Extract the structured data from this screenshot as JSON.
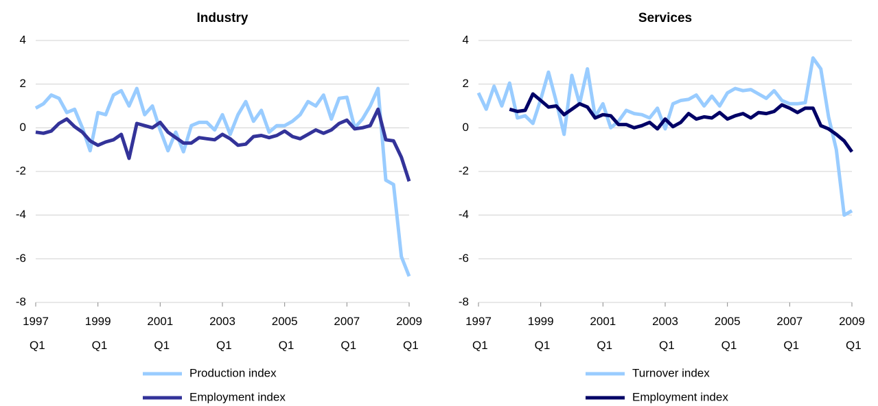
{
  "chart_data": [
    {
      "type": "line",
      "title": "Industry",
      "categories": [
        "1997 Q1",
        null,
        null,
        null,
        null,
        null,
        null,
        null,
        "1999 Q1",
        null,
        null,
        null,
        null,
        null,
        null,
        null,
        "2001 Q1",
        null,
        null,
        null,
        null,
        null,
        null,
        null,
        "2003 Q1",
        null,
        null,
        null,
        null,
        null,
        null,
        null,
        "2005 Q1",
        null,
        null,
        null,
        null,
        null,
        null,
        null,
        "2007 Q1",
        null,
        null,
        null,
        null,
        null,
        null,
        null,
        "2009 Q1"
      ],
      "series": [
        {
          "name": "Production index",
          "color": "#99ccff",
          "values": [
            0.9,
            1.1,
            1.5,
            1.35,
            0.7,
            0.85,
            0,
            -1.05,
            0.7,
            0.6,
            1.5,
            1.7,
            1.0,
            1.8,
            0.6,
            1.0,
            -0.1,
            -1.05,
            -0.2,
            -1.1,
            0.1,
            0.25,
            0.25,
            -0.1,
            0.6,
            -0.3,
            0.6,
            1.2,
            0.3,
            0.8,
            -0.2,
            0.1,
            0.1,
            0.3,
            0.6,
            1.2,
            1.0,
            1.5,
            0.4,
            1.35,
            1.4,
            0.0,
            0.4,
            1.0,
            1.8,
            -2.4,
            -2.6,
            -5.9,
            -6.8
          ]
        },
        {
          "name": "Employment index",
          "color": "#333399",
          "values": [
            -0.2,
            -0.25,
            -0.15,
            0.2,
            0.4,
            0.05,
            -0.2,
            -0.6,
            -0.8,
            -0.65,
            -0.55,
            -0.3,
            -1.4,
            0.2,
            0.1,
            0.0,
            0.25,
            -0.2,
            -0.45,
            -0.7,
            -0.7,
            -0.45,
            -0.5,
            -0.55,
            -0.3,
            -0.5,
            -0.8,
            -0.75,
            -0.4,
            -0.35,
            -0.45,
            -0.35,
            -0.15,
            -0.4,
            -0.5,
            -0.3,
            -0.1,
            -0.25,
            -0.1,
            0.2,
            0.35,
            -0.05,
            0.0,
            0.1,
            0.85,
            -0.55,
            -0.6,
            -1.35,
            -2.45
          ]
        }
      ],
      "ylim": [
        -8,
        4
      ],
      "yticks": [
        -8,
        -6,
        -4,
        -2,
        0,
        2,
        4
      ],
      "grid": true,
      "legend": "bottom"
    },
    {
      "type": "line",
      "title": "Services",
      "categories": [
        "1997 Q1",
        null,
        null,
        null,
        null,
        null,
        null,
        null,
        "1999 Q1",
        null,
        null,
        null,
        null,
        null,
        null,
        null,
        "2001 Q1",
        null,
        null,
        null,
        null,
        null,
        null,
        null,
        "2003 Q1",
        null,
        null,
        null,
        null,
        null,
        null,
        null,
        "2005 Q1",
        null,
        null,
        null,
        null,
        null,
        null,
        null,
        "2007 Q1",
        null,
        null,
        null,
        null,
        null,
        null,
        null,
        "2009 Q1"
      ],
      "series": [
        {
          "name": "Turnover index",
          "color": "#99ccff",
          "values": [
            1.6,
            0.85,
            1.9,
            1.0,
            2.05,
            0.45,
            0.55,
            0.2,
            1.3,
            2.55,
            1.2,
            -0.3,
            2.4,
            1.1,
            2.7,
            0.5,
            1.1,
            0.0,
            0.3,
            0.8,
            0.65,
            0.6,
            0.45,
            0.9,
            -0.05,
            1.1,
            1.25,
            1.3,
            1.5,
            1.0,
            1.45,
            1.0,
            1.6,
            1.8,
            1.7,
            1.75,
            1.55,
            1.35,
            1.7,
            1.25,
            1.1,
            1.1,
            1.15,
            3.2,
            2.7,
            0.5,
            -1.0,
            -4.0,
            -3.8
          ]
        },
        {
          "name": "Employment index",
          "color": "#000066",
          "values": [
            null,
            null,
            null,
            null,
            0.85,
            0.75,
            0.8,
            1.55,
            1.25,
            0.95,
            1.0,
            0.6,
            0.85,
            1.1,
            0.95,
            0.45,
            0.6,
            0.55,
            0.15,
            0.15,
            0.0,
            0.1,
            0.25,
            -0.05,
            0.4,
            0.05,
            0.25,
            0.65,
            0.4,
            0.5,
            0.45,
            0.7,
            0.4,
            0.55,
            0.65,
            0.45,
            0.7,
            0.65,
            0.75,
            1.05,
            0.9,
            0.7,
            0.9,
            0.9,
            0.1,
            -0.05,
            -0.3,
            -0.6,
            -1.1
          ]
        }
      ],
      "ylim": [
        -8,
        4
      ],
      "yticks": [
        -8,
        -6,
        -4,
        -2,
        0,
        2,
        4
      ],
      "grid": true,
      "legend": "bottom"
    }
  ]
}
